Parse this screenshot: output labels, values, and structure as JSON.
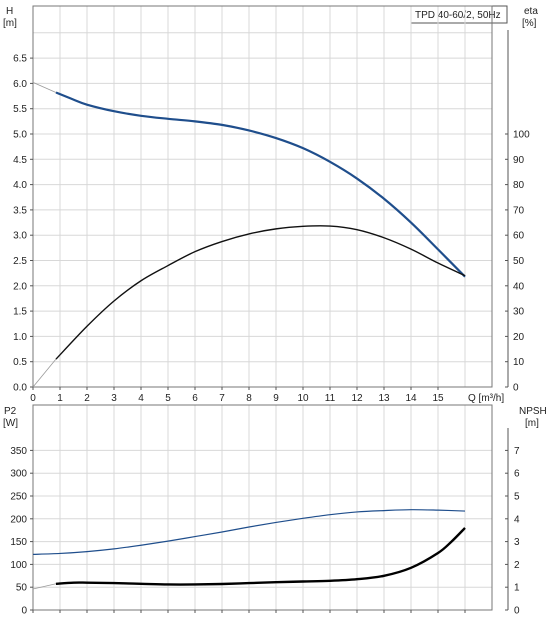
{
  "chart_data": [
    {
      "type": "line",
      "name": "performance",
      "title": "TPD 40-60/2, 50Hz",
      "xlabel": "Q [m³/h]",
      "ylabel_left": [
        "H",
        "[m]"
      ],
      "ylabel_right": [
        "eta",
        "[%]"
      ],
      "xlim": [
        0,
        16
      ],
      "ylim_left": [
        0,
        7
      ],
      "ylim_right": [
        0,
        140
      ],
      "x_ticks": [
        "0",
        "1",
        "2",
        "3",
        "4",
        "5",
        "6",
        "7",
        "8",
        "9",
        "10",
        "11",
        "12",
        "13",
        "14",
        "15"
      ],
      "y_ticks_left": [
        "0.0",
        "0.5",
        "1.0",
        "1.5",
        "2.0",
        "2.5",
        "3.0",
        "3.5",
        "4.0",
        "4.5",
        "5.0",
        "5.5",
        "6.0",
        "6.5"
      ],
      "y_ticks_right": [
        "0",
        "10",
        "20",
        "30",
        "40",
        "50",
        "60",
        "70",
        "80",
        "90",
        "100"
      ],
      "grid": true,
      "colors": {
        "H": "#1f4e8c",
        "eta": "#111111",
        "extension": "#9a9a9a"
      },
      "series": [
        {
          "key": "H",
          "axis": "left",
          "x": [
            0.85,
            1.5,
            2,
            3,
            4,
            5,
            6,
            7,
            8,
            9,
            10,
            11,
            12,
            13,
            14,
            15,
            16
          ],
          "values": [
            5.82,
            5.68,
            5.58,
            5.45,
            5.36,
            5.3,
            5.25,
            5.18,
            5.07,
            4.92,
            4.72,
            4.45,
            4.12,
            3.72,
            3.25,
            2.72,
            2.18
          ]
        },
        {
          "key": "eta",
          "axis": "right",
          "x": [
            0.85,
            2,
            3,
            4,
            5,
            6,
            7,
            8,
            9,
            10,
            11,
            12,
            13,
            14,
            15,
            16
          ],
          "values": [
            11,
            24,
            34,
            42,
            48,
            53.5,
            57.5,
            60.5,
            62.5,
            63.5,
            63.6,
            62.2,
            59,
            54.5,
            49,
            44
          ]
        },
        {
          "key": "H-extension",
          "axis": "left",
          "x": [
            0,
            0.85
          ],
          "values": [
            6.02,
            5.82
          ]
        },
        {
          "key": "eta-extension",
          "axis": "right",
          "x": [
            0,
            0.85
          ],
          "values": [
            0,
            11
          ]
        }
      ]
    },
    {
      "type": "line",
      "name": "power",
      "xlabel": "",
      "ylabel_left": [
        "P2",
        "[W]"
      ],
      "ylabel_right": [
        "NPSH",
        "[m]"
      ],
      "xlim": [
        0,
        16
      ],
      "ylim_left": [
        0,
        400
      ],
      "ylim_right": [
        0,
        8
      ],
      "y_ticks_left": [
        "0",
        "50",
        "100",
        "150",
        "200",
        "250",
        "300",
        "350"
      ],
      "y_ticks_right": [
        "0",
        "1",
        "2",
        "3",
        "4",
        "5",
        "6",
        "7"
      ],
      "grid": true,
      "colors": {
        "P2": "#1f4e8c",
        "NPSH": "#000000",
        "extension": "#9a9a9a"
      },
      "series": [
        {
          "key": "P2",
          "axis": "left",
          "x": [
            0,
            1,
            2,
            3,
            4,
            5,
            6,
            7,
            8,
            9,
            10,
            11,
            12,
            13,
            14,
            15,
            16
          ],
          "values": [
            122,
            124,
            128,
            134,
            142,
            151,
            161,
            171,
            182,
            192,
            201,
            209,
            215,
            218,
            220,
            219,
            217
          ]
        },
        {
          "key": "NPSH",
          "axis": "right",
          "x": [
            0.85,
            1.5,
            2,
            3,
            4,
            5,
            6,
            7,
            8,
            9,
            10,
            11,
            12,
            13,
            14,
            15,
            15.5,
            16
          ],
          "values": [
            1.15,
            1.2,
            1.2,
            1.18,
            1.15,
            1.12,
            1.12,
            1.14,
            1.18,
            1.22,
            1.25,
            1.28,
            1.35,
            1.5,
            1.85,
            2.5,
            3.0,
            3.6
          ]
        },
        {
          "key": "NPSH-extension",
          "axis": "right",
          "x": [
            0,
            0.85
          ],
          "values": [
            0.92,
            1.15
          ]
        }
      ]
    }
  ]
}
